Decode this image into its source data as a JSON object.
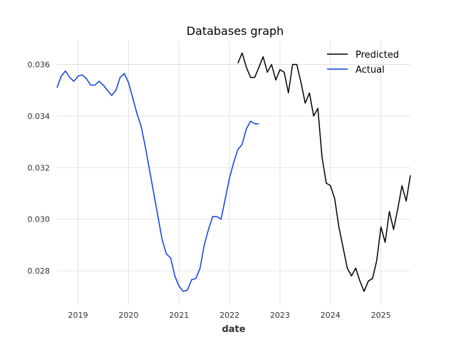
{
  "chart_data": {
    "type": "line",
    "title": "Databases graph",
    "xlabel": "date",
    "ylabel": "",
    "x_ticks": [
      "2019",
      "2020",
      "2021",
      "2022",
      "2023",
      "2024",
      "2025"
    ],
    "y_ticks": [
      "0.028",
      "0.030",
      "0.032",
      "0.034",
      "0.036"
    ],
    "xlim": [
      "2018-08",
      "2025-08"
    ],
    "ylim": [
      0.0267,
      0.0369
    ],
    "grid": true,
    "legend_position": "top-right",
    "series": [
      {
        "name": "Predicted",
        "color": "#000000",
        "x": [
          "2022-03",
          "2022-04",
          "2022-05",
          "2022-06",
          "2022-07",
          "2022-08",
          "2022-09",
          "2022-10",
          "2022-11",
          "2022-12",
          "2023-01",
          "2023-02",
          "2023-03",
          "2023-04",
          "2023-05",
          "2023-06",
          "2023-07",
          "2023-08",
          "2023-09",
          "2023-10",
          "2023-11",
          "2023-12",
          "2024-01",
          "2024-02",
          "2024-03",
          "2024-04",
          "2024-05",
          "2024-06",
          "2024-07",
          "2024-08",
          "2024-09",
          "2024-10",
          "2024-11",
          "2024-12",
          "2025-01",
          "2025-02",
          "2025-03",
          "2025-04",
          "2025-05",
          "2025-06",
          "2025-07",
          "2025-08"
        ],
        "y": [
          0.03605,
          0.03645,
          0.0359,
          0.0355,
          0.0355,
          0.0359,
          0.0363,
          0.0357,
          0.036,
          0.0354,
          0.0358,
          0.0357,
          0.0349,
          0.036,
          0.036,
          0.0353,
          0.0345,
          0.0349,
          0.034,
          0.0343,
          0.0324,
          0.0314,
          0.0313,
          0.0308,
          0.0297,
          0.0289,
          0.0281,
          0.0278,
          0.0281,
          0.0276,
          0.0272,
          0.0276,
          0.0277,
          0.0284,
          0.0297,
          0.0291,
          0.0303,
          0.0296,
          0.0304,
          0.0313,
          0.0307,
          0.0317
        ]
      },
      {
        "name": "Actual",
        "color": "#0a3ee8",
        "x": [
          "2018-08",
          "2018-09",
          "2018-10",
          "2018-11",
          "2018-12",
          "2019-01",
          "2019-02",
          "2019-03",
          "2019-04",
          "2019-05",
          "2019-06",
          "2019-07",
          "2019-08",
          "2019-09",
          "2019-10",
          "2019-11",
          "2019-12",
          "2020-01",
          "2020-02",
          "2020-03",
          "2020-04",
          "2020-05",
          "2020-06",
          "2020-07",
          "2020-08",
          "2020-09",
          "2020-10",
          "2020-11",
          "2020-12",
          "2021-01",
          "2021-02",
          "2021-03",
          "2021-04",
          "2021-05",
          "2021-06",
          "2021-07",
          "2021-08",
          "2021-09",
          "2021-10",
          "2021-11",
          "2021-12",
          "2022-01",
          "2022-02",
          "2022-03",
          "2022-04",
          "2022-05",
          "2022-06",
          "2022-07",
          "2022-08"
        ],
        "y": [
          0.0351,
          0.03555,
          0.03575,
          0.0355,
          0.03535,
          0.03555,
          0.0356,
          0.03545,
          0.0352,
          0.0352,
          0.03535,
          0.0352,
          0.035,
          0.0348,
          0.035,
          0.0355,
          0.03565,
          0.0353,
          0.0347,
          0.0341,
          0.0336,
          0.0328,
          0.0319,
          0.031,
          0.0301,
          0.0292,
          0.02865,
          0.0285,
          0.0278,
          0.0274,
          0.0272,
          0.02725,
          0.02765,
          0.0277,
          0.0281,
          0.029,
          0.0296,
          0.0301,
          0.0301,
          0.03,
          0.0308,
          0.0316,
          0.0322,
          0.0327,
          0.0329,
          0.0335,
          0.0338,
          0.0337,
          0.0337
        ]
      }
    ]
  }
}
